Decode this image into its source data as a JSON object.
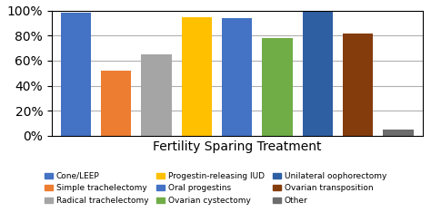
{
  "chart_data": {
    "type": "bar",
    "categories": [
      "Cone/LEEP",
      "Simple trachelectomy",
      "Radical trachelectomy",
      "Progestin-releasing IUD",
      "Oral progestins",
      "Ovarian cystectomy",
      "Unilateral oophorectomy",
      "Ovarian transposition",
      "Other"
    ],
    "values": [
      98,
      52,
      65,
      95,
      94,
      78,
      100,
      82,
      5
    ],
    "colors": [
      "#4472C4",
      "#ED7D31",
      "#A5A5A5",
      "#FFC000",
      "#4472C4",
      "#70AD47",
      "#2E5FA3",
      "#843C0C",
      "#6D6D6D"
    ],
    "xlabel": "Fertility Sparing Treatment",
    "ylim": [
      0,
      100
    ],
    "yticks": [
      {
        "value": 0,
        "label": "0%"
      },
      {
        "value": 20,
        "label": "20%"
      },
      {
        "value": 40,
        "label": "40%"
      },
      {
        "value": 60,
        "label": "60%"
      },
      {
        "value": 80,
        "label": "80%"
      },
      {
        "value": 100,
        "label": "100%"
      }
    ],
    "grid": true,
    "legend": "lower center",
    "tick_labels": "y"
  }
}
